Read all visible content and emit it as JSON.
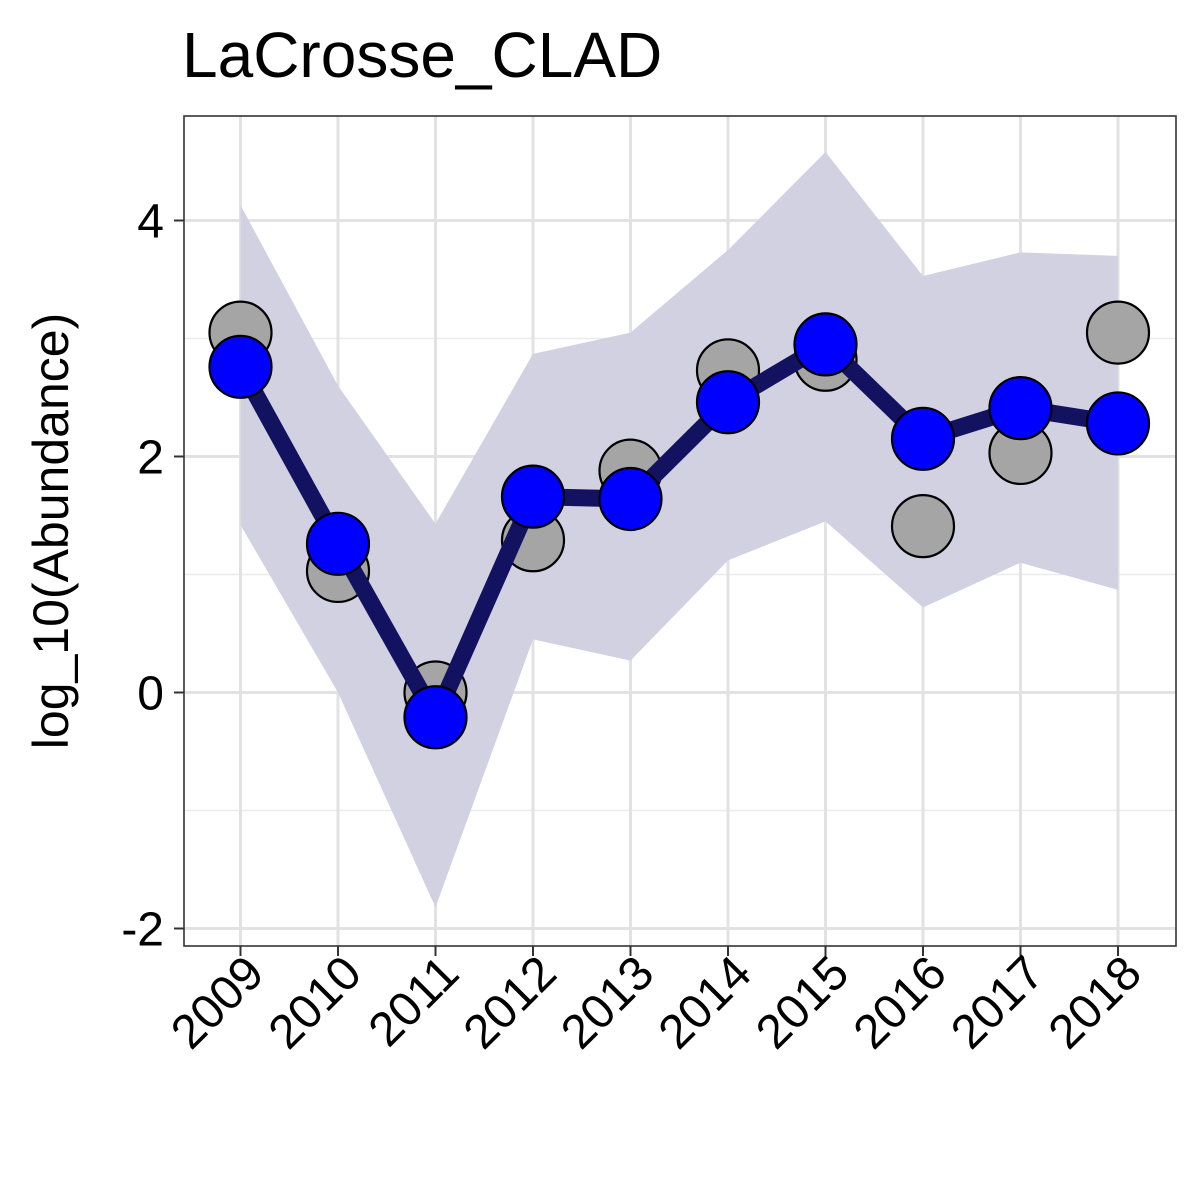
{
  "chart_data": {
    "type": "line",
    "title": "LaCrosse_CLAD",
    "xlabel": "",
    "ylabel": "log_10(Abundance)",
    "categories": [
      "2009",
      "2010",
      "2011",
      "2012",
      "2013",
      "2014",
      "2015",
      "2016",
      "2017",
      "2018"
    ],
    "yticks": [
      "-2",
      "0",
      "2",
      "4"
    ],
    "ylim": [
      -2.1,
      4.9
    ],
    "grid": true,
    "legend": "none",
    "series": [
      {
        "kind": "band",
        "lower": [
          1.42,
          0.0,
          -1.82,
          0.45,
          0.27,
          1.12,
          1.45,
          0.72,
          1.1,
          0.87
        ],
        "upper": [
          4.13,
          2.6,
          1.43,
          2.87,
          3.05,
          3.75,
          4.58,
          3.53,
          3.73,
          3.7
        ],
        "color": "#d1d1e2"
      },
      {
        "kind": "points",
        "values": [
          3.05,
          1.03,
          0.0,
          1.29,
          1.88,
          2.73,
          2.82,
          1.41,
          2.03,
          3.05
        ],
        "color": "#a5a5a5"
      },
      {
        "kind": "line-points",
        "values": [
          2.76,
          1.26,
          -0.21,
          1.66,
          1.64,
          2.46,
          2.95,
          2.15,
          2.41,
          2.28
        ],
        "line_color": "#131260",
        "point_color": "#0000ff"
      }
    ]
  }
}
